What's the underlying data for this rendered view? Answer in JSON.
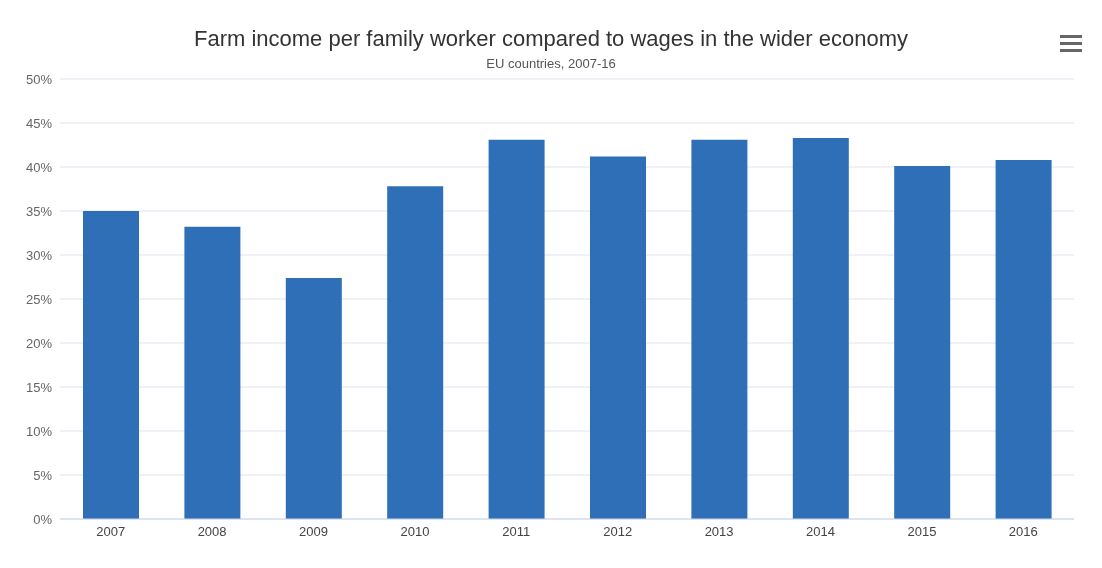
{
  "chart_data": {
    "type": "bar",
    "title": "Farm income per family worker compared to wages in the wider economy",
    "subtitle": "EU countries, 2007-16",
    "categories": [
      "2007",
      "2008",
      "2009",
      "2010",
      "2011",
      "2012",
      "2013",
      "2014",
      "2015",
      "2016"
    ],
    "values": [
      35.0,
      33.2,
      27.4,
      37.8,
      43.1,
      41.2,
      43.1,
      43.3,
      40.1,
      40.8
    ],
    "color": "#2f6fb7",
    "ylim": [
      0,
      50
    ],
    "yticks": [
      {
        "value": 0,
        "label": "0%"
      },
      {
        "value": 5,
        "label": "5%"
      },
      {
        "value": 10,
        "label": "10%"
      },
      {
        "value": 15,
        "label": "15%"
      },
      {
        "value": 20,
        "label": "20%"
      },
      {
        "value": 25,
        "label": "25%"
      },
      {
        "value": 30,
        "label": "30%"
      },
      {
        "value": 35,
        "label": "35%"
      },
      {
        "value": 40,
        "label": "40%"
      },
      {
        "value": 45,
        "label": "45%"
      },
      {
        "value": 50,
        "label": "50%"
      }
    ],
    "grid": "y",
    "legend": false
  }
}
